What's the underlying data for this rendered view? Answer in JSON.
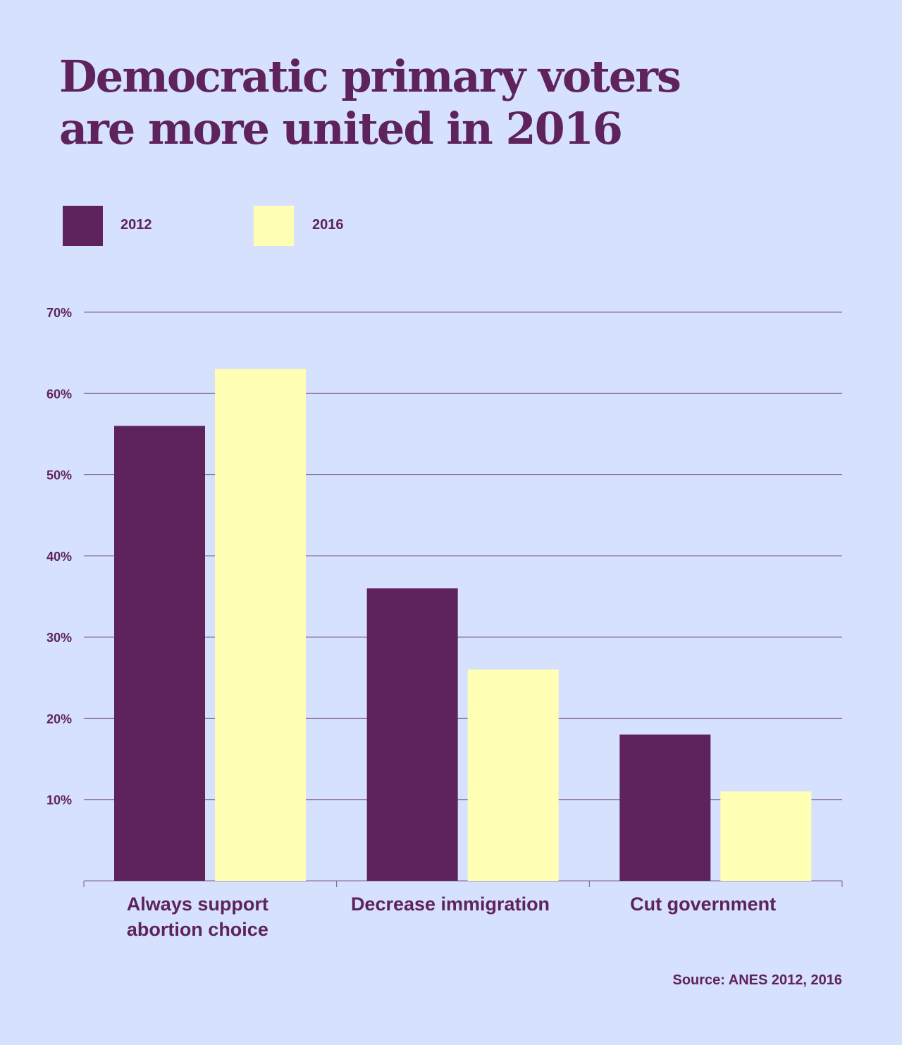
{
  "colors": {
    "background": "#d6e1fd",
    "text": "#5e225d",
    "gridline": "#7b5a8f",
    "series_2012": "#5e225d",
    "series_2016": "#ffffb5"
  },
  "title_lines": [
    "Democratic primary voters",
    "are more united in 2016"
  ],
  "source": "Source: ANES 2012, 2016",
  "chart_data": {
    "type": "bar",
    "title": "Democratic primary voters are more united in 2016",
    "xlabel": "",
    "ylabel": "",
    "ylim": [
      0,
      70
    ],
    "grid": true,
    "legend_position": "top-left",
    "yticks": [
      10,
      20,
      30,
      40,
      50,
      60,
      70
    ],
    "ytick_labels": [
      "10%",
      "20%",
      "30%",
      "40%",
      "50%",
      "60%",
      "70%"
    ],
    "categories": [
      [
        "Always support",
        "abortion choice"
      ],
      [
        "Decrease immigration"
      ],
      [
        "Cut government"
      ]
    ],
    "series": [
      {
        "name": "2012",
        "values": [
          56,
          36,
          18
        ]
      },
      {
        "name": "2016",
        "values": [
          63,
          26,
          11
        ]
      }
    ]
  }
}
